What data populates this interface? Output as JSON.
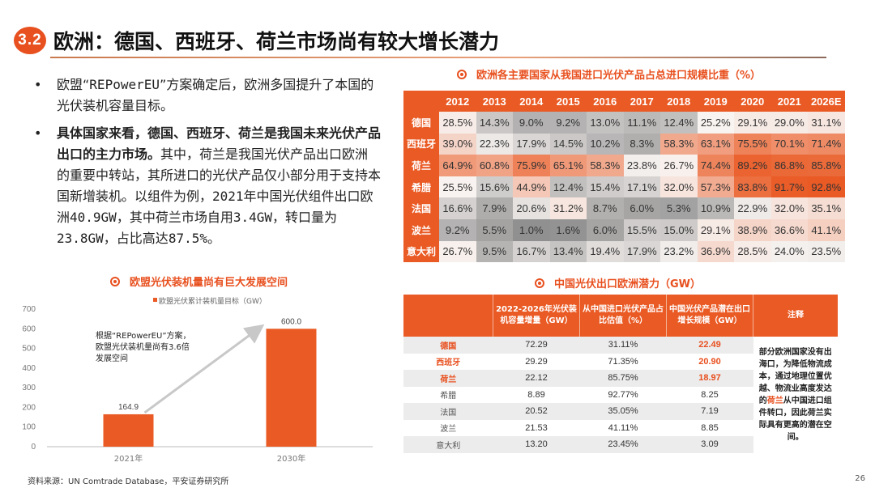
{
  "header": {
    "section_number": "3.2",
    "title": "欧洲：德国、西班牙、荷兰市场尚有较大增长潜力"
  },
  "bullets": [
    {
      "parts": [
        {
          "text": "欧盟“",
          "mono": false
        },
        {
          "text": "REPowerEU",
          "mono": true
        },
        {
          "text": "”方案确定后，欧洲多国提升了本国的光伏装机容量目标。",
          "mono": false
        }
      ]
    },
    {
      "bold": "具体国家来看，德国、西班牙、荷兰是我国未来光伏产品出口的主力市场。",
      "parts": [
        {
          "text": "其中，荷兰是我国光伏产品出口欧洲的重要中转站，其所进口的光伏产品仅小部分用于支持本国新增装机。以组件为例，",
          "mono": false
        },
        {
          "text": "2021",
          "mono": true
        },
        {
          "text": "年中国光伏组件出口欧洲",
          "mono": false
        },
        {
          "text": "40.9GW",
          "mono": true
        },
        {
          "text": "，其中荷兰市场自用",
          "mono": false
        },
        {
          "text": "3.4GW",
          "mono": true
        },
        {
          "text": "，转口量为",
          "mono": false
        },
        {
          "text": "23.8GW",
          "mono": true
        },
        {
          "text": "，占比高达",
          "mono": false
        },
        {
          "text": "87.5%",
          "mono": true
        },
        {
          "text": "。",
          "mono": false
        }
      ]
    }
  ],
  "heatmap": {
    "title": "欧洲各主要国家从我国进口光伏产品占总进口规模比重（%）",
    "years": [
      "2012",
      "2013",
      "2014",
      "2015",
      "2016",
      "2017",
      "2018",
      "2019",
      "2020",
      "2021",
      "2026E"
    ],
    "rows": [
      {
        "country": "德国",
        "values": [
          "28.5%",
          "14.3%",
          "9.0%",
          "9.2%",
          "13.0%",
          "11.1%",
          "12.4%",
          "25.2%",
          "29.1%",
          "29.0%",
          "31.1%"
        ]
      },
      {
        "country": "西班牙",
        "values": [
          "39.0%",
          "22.3%",
          "17.9%",
          "14.5%",
          "10.2%",
          "8.3%",
          "58.3%",
          "63.1%",
          "75.5%",
          "70.1%",
          "71.4%"
        ]
      },
      {
        "country": "荷兰",
        "values": [
          "64.9%",
          "60.8%",
          "75.9%",
          "65.1%",
          "58.3%",
          "23.8%",
          "26.7%",
          "74.4%",
          "89.2%",
          "86.8%",
          "85.8%"
        ]
      },
      {
        "country": "希腊",
        "values": [
          "25.5%",
          "15.6%",
          "44.9%",
          "12.4%",
          "15.4%",
          "17.1%",
          "32.0%",
          "57.3%",
          "83.8%",
          "91.7%",
          "92.8%"
        ]
      },
      {
        "country": "法国",
        "values": [
          "16.6%",
          "7.9%",
          "20.6%",
          "31.2%",
          "8.7%",
          "6.0%",
          "5.3%",
          "10.9%",
          "22.9%",
          "32.0%",
          "35.1%"
        ]
      },
      {
        "country": "波兰",
        "values": [
          "9.2%",
          "5.5%",
          "1.0%",
          "1.6%",
          "6.0%",
          "15.5%",
          "15.0%",
          "29.1%",
          "38.9%",
          "36.6%",
          "41.1%"
        ]
      },
      {
        "country": "意大利",
        "values": [
          "26.7%",
          "9.5%",
          "16.7%",
          "13.4%",
          "19.4%",
          "17.9%",
          "23.2%",
          "36.9%",
          "28.5%",
          "24.0%",
          "23.5%"
        ]
      }
    ]
  },
  "chart_data": {
    "type": "bar",
    "title": "欧盟光伏装机量尚有巨大发展空间",
    "legend": "欧盟光伏累计装机量目标（GW）",
    "legend_position": "top",
    "categories": [
      "2021年",
      "2030年"
    ],
    "values": [
      164.9,
      600.0
    ],
    "value_labels": [
      "164.9",
      "600.0"
    ],
    "yticks": [
      "0",
      "100",
      "200",
      "300",
      "400",
      "500",
      "600",
      "700"
    ],
    "ylim": [
      0,
      700
    ],
    "xlabel": "",
    "ylabel": "",
    "grid": false,
    "annotation": [
      "根据“REPowerEU”方案，",
      "欧盟光伏装机量尚有3.6倍",
      "发展空间"
    ],
    "bar_color": "#ea5a24"
  },
  "potential": {
    "title": "中国光伏出口欧洲潜力（GW）",
    "headers": [
      "",
      "2022-2026年光伏装机容量增量（GW）",
      "从中国进口光伏产品占比估值（%）",
      "中国光伏产品潜在出口增长规模（GW）",
      "注释"
    ],
    "rows": [
      {
        "country": "德国",
        "increment": "72.29",
        "share": "31.11%",
        "potential": "22.49",
        "highlight": true
      },
      {
        "country": "西班牙",
        "increment": "29.29",
        "share": "71.35%",
        "potential": "20.90",
        "highlight": true
      },
      {
        "country": "荷兰",
        "increment": "22.12",
        "share": "85.75%",
        "potential": "18.97",
        "highlight": true
      },
      {
        "country": "希腊",
        "increment": "8.89",
        "share": "92.77%",
        "potential": "8.25",
        "highlight": false
      },
      {
        "country": "法国",
        "increment": "20.52",
        "share": "35.05%",
        "potential": "7.19",
        "highlight": false
      },
      {
        "country": "波兰",
        "increment": "21.53",
        "share": "41.11%",
        "potential": "8.85",
        "highlight": false
      },
      {
        "country": "意大利",
        "increment": "13.20",
        "share": "23.45%",
        "potential": "3.09",
        "highlight": false
      }
    ],
    "note_before": "部分欧洲国家没有出海口，为降低物流成本，通过地理位置优越、物流业高度发达的",
    "note_highlight": "荷兰",
    "note_after": "从中国进口组件转口，因此荷兰实际具有更高的潜在空间。"
  },
  "footer": {
    "source": "资料来源：UN Comtrade Database，平安证券研究所",
    "page_number": "26"
  },
  "colors": {
    "accent": "#ea5a24",
    "heat_low": "#8c8c8c",
    "heat_mid": "#f5f5f5",
    "heat_high": "#ea5a24"
  }
}
